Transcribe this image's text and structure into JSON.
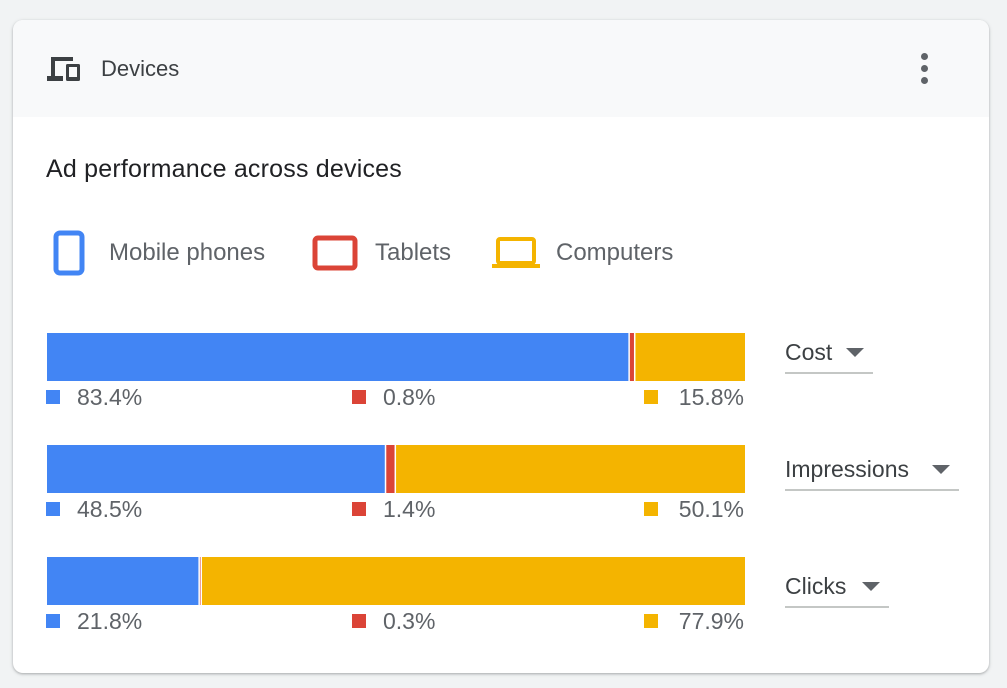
{
  "header": {
    "title": "Devices",
    "icon": "devices-icon",
    "menu_icon": "more-vert-icon"
  },
  "colors": {
    "mobile": "#4285f4",
    "tablet": "#db4437",
    "computer": "#f4b400"
  },
  "chart_data": {
    "type": "bar",
    "stacked": true,
    "orientation": "horizontal",
    "title": "Ad performance across devices",
    "legend": [
      "Mobile phones",
      "Tablets",
      "Computers"
    ],
    "legend_placement": "top",
    "categories": [
      "Cost",
      "Impressions",
      "Clicks"
    ],
    "series": [
      {
        "name": "Mobile phones",
        "values": [
          83.4,
          48.5,
          21.8
        ],
        "labels": [
          "83.4%",
          "48.5%",
          "21.8%"
        ]
      },
      {
        "name": "Tablets",
        "values": [
          0.8,
          1.4,
          0.3
        ],
        "labels": [
          "0.8%",
          "1.4%",
          "0.3%"
        ]
      },
      {
        "name": "Computers",
        "values": [
          15.8,
          50.1,
          77.9
        ],
        "labels": [
          "15.8%",
          "50.1%",
          "77.9%"
        ]
      }
    ],
    "xlim": [
      0,
      100
    ],
    "grid": false
  },
  "metrics": [
    {
      "label": "Cost"
    },
    {
      "label": "Impressions"
    },
    {
      "label": "Clicks"
    }
  ]
}
